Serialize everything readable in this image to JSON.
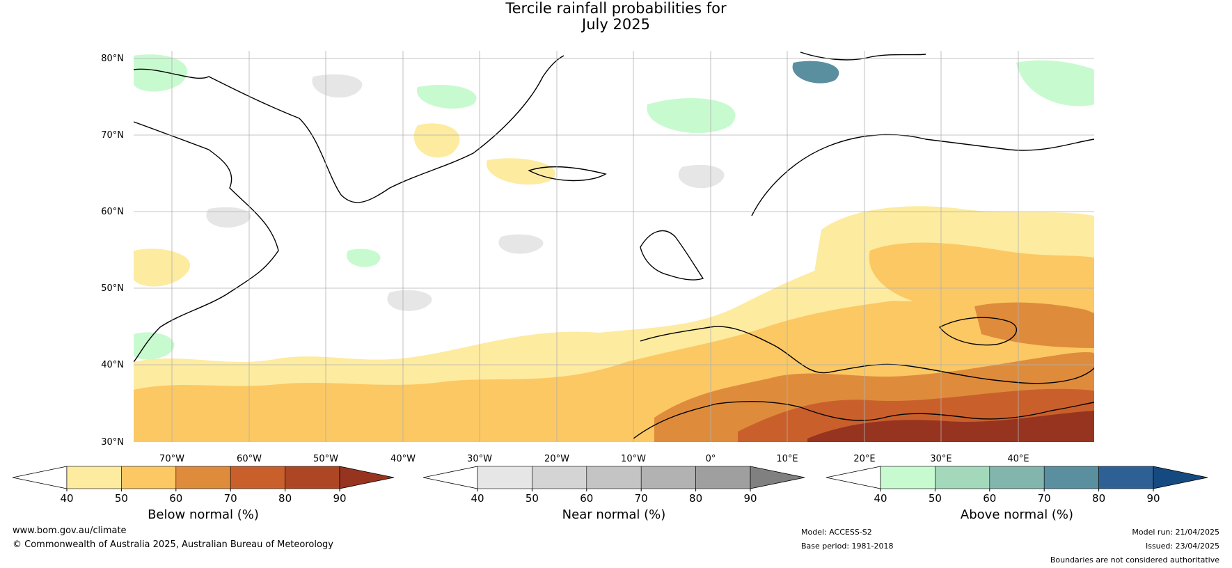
{
  "title": {
    "line1": "Tercile rainfall probabilities for",
    "line2": "July 2025"
  },
  "map": {
    "lat_labels": [
      "80°N",
      "70°N",
      "60°N",
      "50°N",
      "40°N",
      "30°N"
    ],
    "lon_labels": [
      "70°W",
      "60°W",
      "50°W",
      "40°W",
      "30°W",
      "20°W",
      "10°W",
      "0°",
      "10°E",
      "20°E",
      "30°E",
      "40°E"
    ],
    "extent": {
      "lon_min": -75,
      "lon_max": 50,
      "lat_min": 30,
      "lat_max": 81
    },
    "grid": true
  },
  "colorbars": [
    {
      "label": "Below normal (%)",
      "ticks": [
        "40",
        "50",
        "60",
        "70",
        "80",
        "90"
      ],
      "colors": [
        "#ffffff",
        "#fdeba0",
        "#fbc863",
        "#de8c3c",
        "#c9602c",
        "#ad4625",
        "#973420"
      ]
    },
    {
      "label": "Near normal (%)",
      "ticks": [
        "40",
        "50",
        "60",
        "70",
        "80",
        "90"
      ],
      "colors": [
        "#ffffff",
        "#e6e6e6",
        "#d4d4d4",
        "#c4c4c4",
        "#b2b2b2",
        "#9f9f9f",
        "#808080"
      ]
    },
    {
      "label": "Above normal (%)",
      "ticks": [
        "40",
        "50",
        "60",
        "70",
        "80",
        "90"
      ],
      "colors": [
        "#ffffff",
        "#c8fad0",
        "#a3d8bb",
        "#82b6ad",
        "#5a8fa0",
        "#2f6095",
        "#154a80"
      ]
    }
  ],
  "footer": {
    "website": "www.bom.gov.au/climate",
    "copyright": "© Commonwealth of Australia 2025, Australian Bureau of Meteorology",
    "model": "Model: ACCESS-S2",
    "base_period": "Base period: 1981-2018",
    "model_run": "Model run: 21/04/2025",
    "issued": "Issued: 23/04/2025",
    "disclaimer": "Boundaries are not considered authoritative"
  }
}
